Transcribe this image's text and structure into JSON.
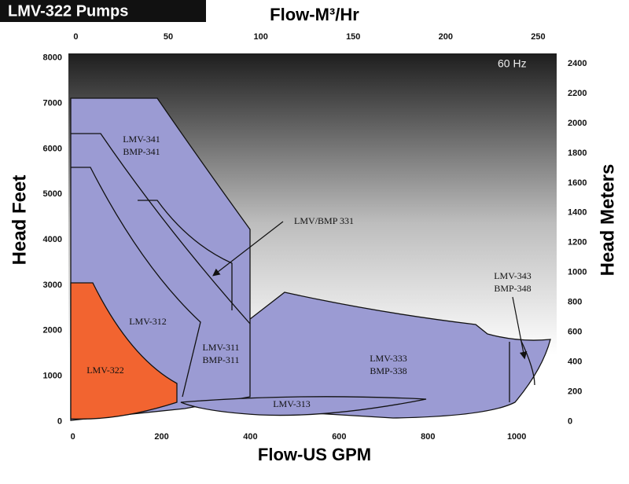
{
  "chart_data": {
    "type": "coverage",
    "title": "LMV-322 Pumps",
    "x_label": "Flow-US GPM",
    "x2_label": "Flow-M³/Hr",
    "y_label": "Head Feet",
    "y2_label": "Head Meters",
    "annotation": "60 Hz",
    "xlim": [
      -10,
      1090
    ],
    "xticks": [
      0,
      200,
      400,
      600,
      800,
      1000
    ],
    "x2lim": [
      -4,
      260
    ],
    "x2ticks": [
      0,
      50,
      100,
      150,
      200,
      250
    ],
    "ylim": [
      -200,
      8100
    ],
    "yticks": [
      0,
      1000,
      2000,
      3000,
      4000,
      5000,
      6000,
      7000,
      8000
    ],
    "y2lim": [
      -61,
      2469
    ],
    "y2ticks": [
      0,
      200,
      400,
      600,
      800,
      1000,
      1200,
      1400,
      1600,
      1800,
      2000,
      2200,
      2400
    ],
    "regions": [
      {
        "label": [
          "LMV-341",
          "BMP-341"
        ]
      },
      {
        "label": [
          "LMV/BMP 331"
        ]
      },
      {
        "label": [
          "LMV-312"
        ]
      },
      {
        "label": [
          "LMV-311",
          "BMP-311"
        ]
      },
      {
        "label": [
          "LMV-322"
        ]
      },
      {
        "label": [
          "LMV-313"
        ]
      },
      {
        "label": [
          "LMV-333",
          "BMP-338"
        ]
      },
      {
        "label": [
          "LMV-343",
          "BMP-348"
        ]
      }
    ]
  }
}
